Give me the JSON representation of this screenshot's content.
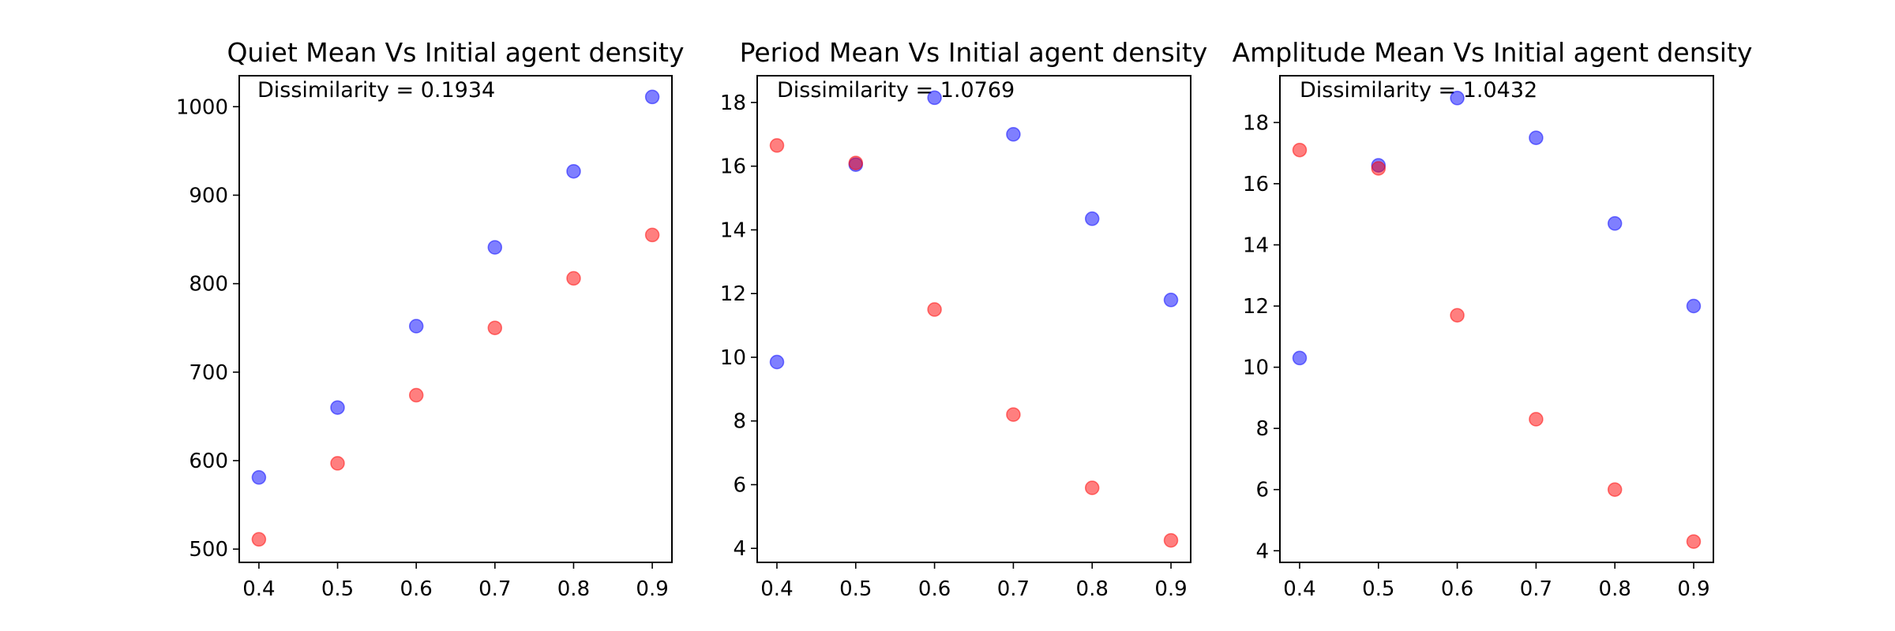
{
  "chart_data": [
    {
      "type": "scatter",
      "title": "Quiet Mean Vs Initial agent density",
      "annotation": "Dissimilarity = 0.1934",
      "xlabel": "",
      "ylabel": "",
      "xlim": [
        0.375,
        0.925
      ],
      "ylim": [
        485,
        1035
      ],
      "xticks": [
        0.4,
        0.5,
        0.6,
        0.7,
        0.8,
        0.9
      ],
      "yticks": [
        500,
        600,
        700,
        800,
        900,
        1000
      ],
      "grid": false,
      "series": [
        {
          "color": "#0000ff",
          "points": [
            [
              0.4,
              581
            ],
            [
              0.5,
              660
            ],
            [
              0.6,
              752
            ],
            [
              0.7,
              841
            ],
            [
              0.8,
              927
            ],
            [
              0.9,
              1011
            ]
          ]
        },
        {
          "color": "#ff0000",
          "points": [
            [
              0.4,
              511
            ],
            [
              0.5,
              597
            ],
            [
              0.6,
              674
            ],
            [
              0.7,
              750
            ],
            [
              0.8,
              806
            ],
            [
              0.9,
              855
            ]
          ]
        }
      ]
    },
    {
      "type": "scatter",
      "title": "Period Mean Vs Initial agent density",
      "annotation": "Dissimilarity = 1.0769",
      "xlabel": "",
      "ylabel": "",
      "xlim": [
        0.375,
        0.925
      ],
      "ylim": [
        3.56,
        18.84
      ],
      "xticks": [
        0.4,
        0.5,
        0.6,
        0.7,
        0.8,
        0.9
      ],
      "yticks": [
        4,
        6,
        8,
        10,
        12,
        14,
        16,
        18
      ],
      "grid": false,
      "series": [
        {
          "color": "#0000ff",
          "points": [
            [
              0.4,
              9.85
            ],
            [
              0.5,
              16.05
            ],
            [
              0.6,
              18.15
            ],
            [
              0.7,
              17.0
            ],
            [
              0.8,
              14.35
            ],
            [
              0.9,
              11.8
            ]
          ]
        },
        {
          "color": "#ff0000",
          "points": [
            [
              0.4,
              16.65
            ],
            [
              0.5,
              16.1
            ],
            [
              0.6,
              11.5
            ],
            [
              0.7,
              8.2
            ],
            [
              0.8,
              5.9
            ],
            [
              0.9,
              4.25
            ]
          ]
        }
      ]
    },
    {
      "type": "scatter",
      "title": "Amplitude Mean Vs Initial agent density",
      "annotation": "Dissimilarity = 1.0432",
      "xlabel": "",
      "ylabel": "",
      "xlim": [
        0.375,
        0.925
      ],
      "ylim": [
        3.62,
        19.53
      ],
      "xticks": [
        0.4,
        0.5,
        0.6,
        0.7,
        0.8,
        0.9
      ],
      "yticks": [
        4,
        6,
        8,
        10,
        12,
        14,
        16,
        18
      ],
      "grid": false,
      "series": [
        {
          "color": "#0000ff",
          "points": [
            [
              0.4,
              10.3
            ],
            [
              0.5,
              16.6
            ],
            [
              0.6,
              18.8
            ],
            [
              0.7,
              17.5
            ],
            [
              0.8,
              14.7
            ],
            [
              0.9,
              12.0
            ]
          ]
        },
        {
          "color": "#ff0000",
          "points": [
            [
              0.4,
              17.1
            ],
            [
              0.5,
              16.5
            ],
            [
              0.6,
              11.7
            ],
            [
              0.7,
              8.3
            ],
            [
              0.8,
              6.0
            ],
            [
              0.9,
              4.3
            ]
          ]
        }
      ]
    }
  ]
}
